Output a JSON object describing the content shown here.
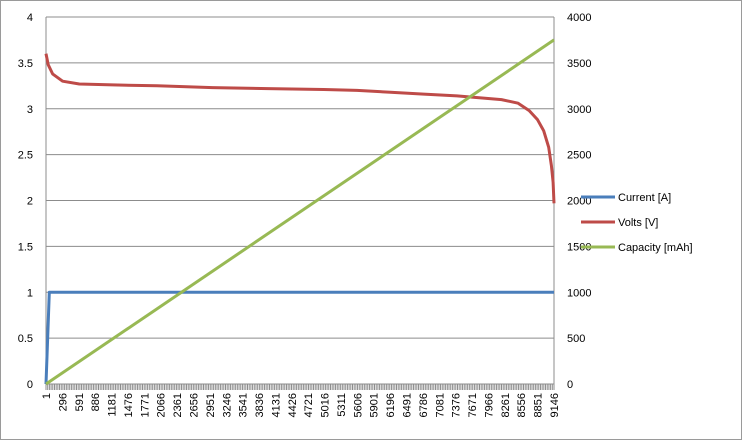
{
  "chart_data": {
    "type": "line",
    "title": "",
    "xlabel": "",
    "ylabel": "",
    "y2label": "",
    "grid": true,
    "legend_position": "right",
    "x_tick_labels": [
      "1",
      "296",
      "591",
      "886",
      "1181",
      "1476",
      "1771",
      "2066",
      "2361",
      "2656",
      "2951",
      "3246",
      "3541",
      "3836",
      "4131",
      "4426",
      "4721",
      "5016",
      "5311",
      "5606",
      "5901",
      "6196",
      "6491",
      "6786",
      "7081",
      "7376",
      "7671",
      "7966",
      "8261",
      "8556",
      "8851",
      "9146"
    ],
    "xlim": [
      1,
      9146
    ],
    "ylim": [
      0,
      4
    ],
    "y_ticks": [
      "0",
      "0.5",
      "1",
      "1.5",
      "2",
      "2.5",
      "3",
      "3.5",
      "4"
    ],
    "y2lim": [
      0,
      4000
    ],
    "y2_ticks": [
      "0",
      "500",
      "1000",
      "1500",
      "2000",
      "2500",
      "3000",
      "3500",
      "4000"
    ],
    "series": [
      {
        "name": "Current [A]",
        "axis": "left",
        "color": "#4a7ebb",
        "points": [
          [
            1,
            0
          ],
          [
            60,
            1
          ],
          [
            9146,
            1
          ]
        ]
      },
      {
        "name": "Volts [V]",
        "axis": "left",
        "color": "#be4b48",
        "points": [
          [
            1,
            3.6
          ],
          [
            40,
            3.48
          ],
          [
            120,
            3.38
          ],
          [
            300,
            3.3
          ],
          [
            600,
            3.27
          ],
          [
            1200,
            3.26
          ],
          [
            2000,
            3.25
          ],
          [
            3000,
            3.23
          ],
          [
            4000,
            3.22
          ],
          [
            5000,
            3.21
          ],
          [
            5600,
            3.2
          ],
          [
            6200,
            3.18
          ],
          [
            6800,
            3.16
          ],
          [
            7400,
            3.14
          ],
          [
            7800,
            3.12
          ],
          [
            8200,
            3.1
          ],
          [
            8500,
            3.06
          ],
          [
            8700,
            2.98
          ],
          [
            8850,
            2.88
          ],
          [
            8960,
            2.76
          ],
          [
            9050,
            2.58
          ],
          [
            9100,
            2.38
          ],
          [
            9130,
            2.2
          ],
          [
            9146,
            1.97
          ]
        ]
      },
      {
        "name": "Capacity [mAh]",
        "axis": "right",
        "color": "#98b954",
        "points": [
          [
            1,
            0
          ],
          [
            9146,
            3750
          ]
        ]
      }
    ]
  }
}
